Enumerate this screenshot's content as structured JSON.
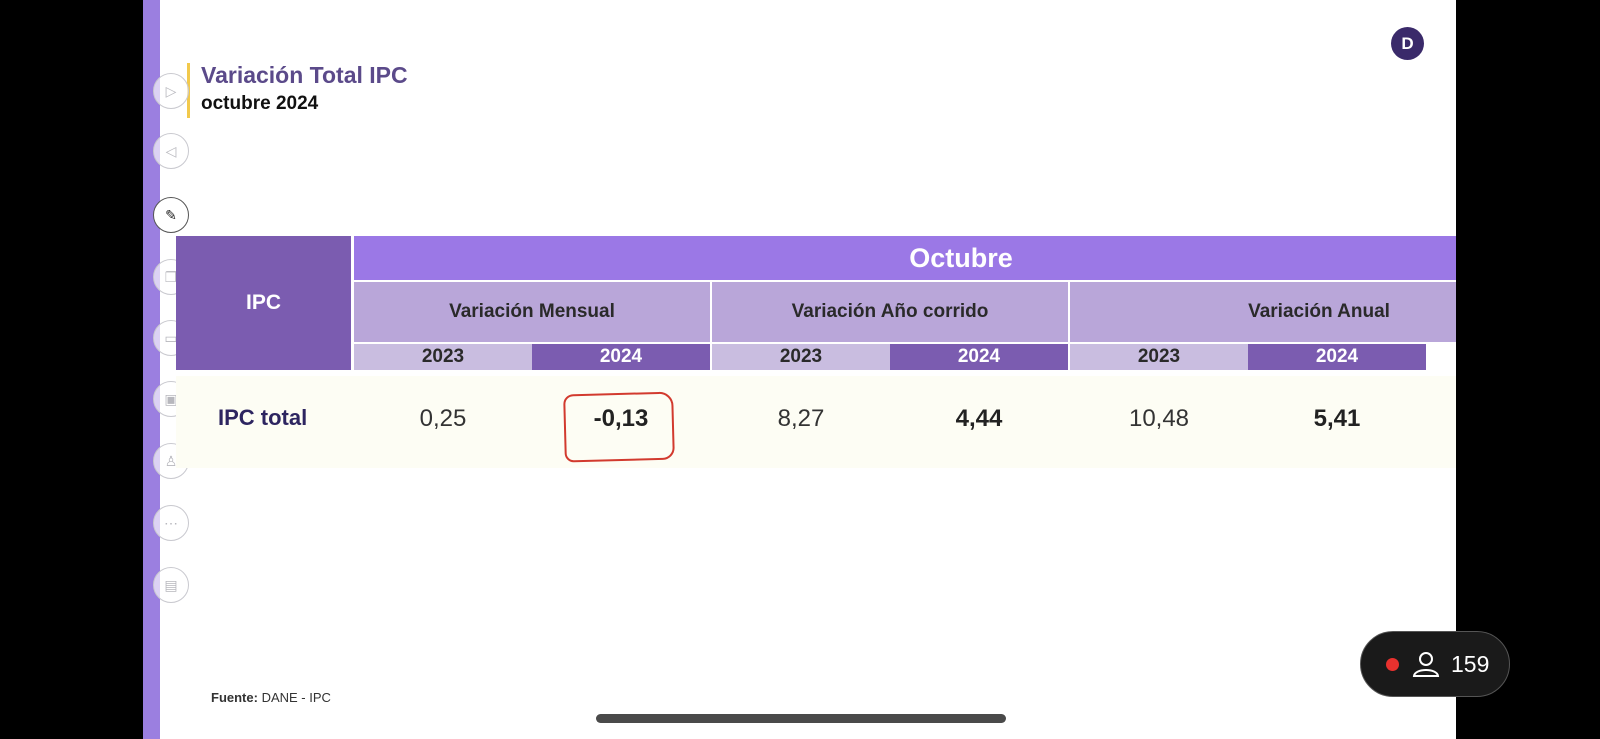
{
  "slide": {
    "title": "Variación Total IPC",
    "subtitle": "octubre 2024",
    "logo_text": "D",
    "source_label": "Fuente:",
    "source_value": "DANE - IPC"
  },
  "colors": {
    "header_dark": "#7b5cb0",
    "header_bright": "#9b78e6",
    "header_light": "#b9a6d9",
    "highlight": "#d23a2e"
  },
  "toolbar": {
    "items": [
      {
        "name": "next-slide-icon",
        "glyph": "▷"
      },
      {
        "name": "previous-slide-icon",
        "glyph": "◁"
      },
      {
        "name": "pen-icon",
        "glyph": "✎"
      },
      {
        "name": "copy-icon",
        "glyph": "❐"
      },
      {
        "name": "subtitles-icon",
        "glyph": "▭"
      },
      {
        "name": "camera-icon",
        "glyph": "▣"
      },
      {
        "name": "presenter-icon",
        "glyph": "♙"
      },
      {
        "name": "more-options-icon",
        "glyph": "⋯"
      },
      {
        "name": "display-settings-icon",
        "glyph": "▤"
      }
    ]
  },
  "table": {
    "row_header": "IPC",
    "month": "Octubre",
    "groups": [
      "Variación Mensual",
      "Variación Año corrido",
      "Variación Anual"
    ],
    "years": [
      "2023",
      "2024",
      "2023",
      "2024",
      "2023",
      "2024"
    ],
    "row": {
      "label": "IPC total",
      "values": [
        "0,25",
        "-0,13",
        "8,27",
        "4,44",
        "10,48",
        "5,41"
      ]
    }
  },
  "overlay": {
    "viewer_count": "159"
  }
}
